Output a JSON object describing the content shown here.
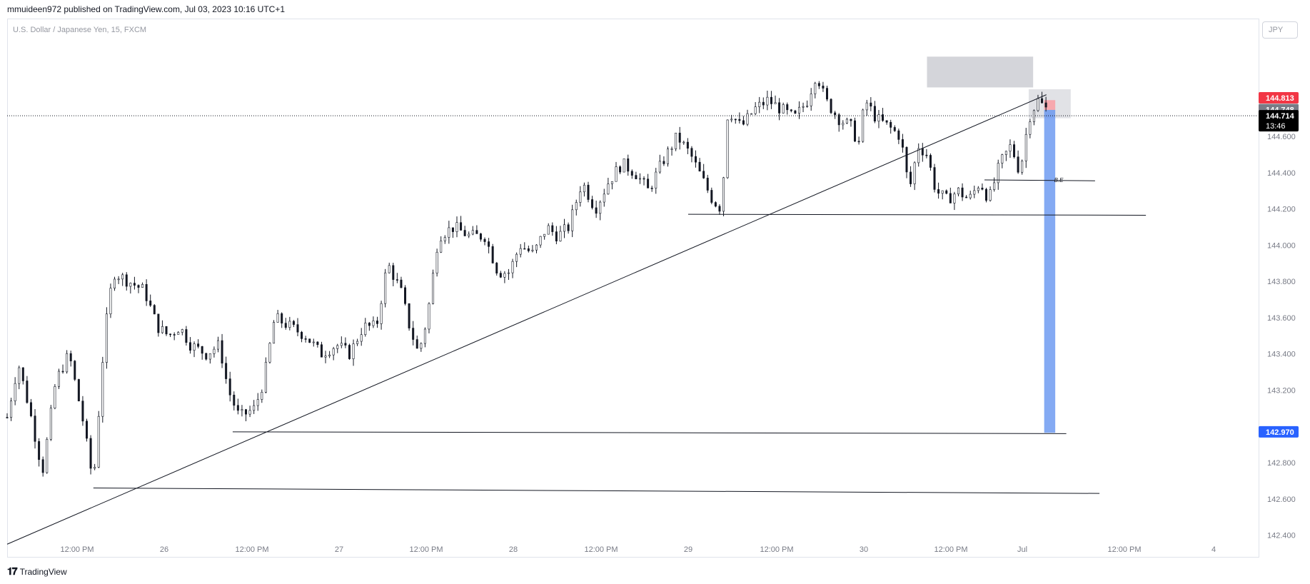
{
  "header": {
    "published": "mmuideen972 published on TradingView.com, Jul 03, 2023 10:16 UTC+1",
    "symbol": "U.S. Dollar / Japanese Yen, 15, FXCM",
    "currency_button": "JPY"
  },
  "footer": {
    "logo_text": "TradingView"
  },
  "colors": {
    "candle": "#131722",
    "stop_label": "#f23645",
    "target_label": "#2962ff",
    "target_zone": "#5b8def",
    "stop_zone": "#f7a8ae",
    "supply_zone": "#c9cbd1",
    "entry_label": "#787b86",
    "current_label": "#000000"
  },
  "chart_data": {
    "type": "candlestick",
    "ylim": [
      142.28,
      145.25
    ],
    "y_ticks": [
      "144.600",
      "144.400",
      "144.200",
      "144.000",
      "143.800",
      "143.600",
      "143.400",
      "143.200",
      "142.800",
      "142.600",
      "142.400"
    ],
    "x_ticks": [
      "12:00 PM",
      "26",
      "12:00 PM",
      "27",
      "12:00 PM",
      "28",
      "12:00 PM",
      "29",
      "12:00 PM",
      "30",
      "12:00 PM",
      "Jul",
      "12:00 PM",
      "4"
    ],
    "price_labels": {
      "stop": "144.813",
      "entry": "144.748",
      "current": "144.714",
      "countdown": "13:46",
      "target": "142.970"
    },
    "annotation": "B.E",
    "horizontal_levels": [
      142.66,
      142.97,
      144.17,
      144.36
    ],
    "trendline_label": "",
    "close_path": [
      [
        0,
        143.05
      ],
      [
        0.5,
        143.35
      ],
      [
        1,
        143.1
      ],
      [
        1.6,
        142.75
      ],
      [
        2.2,
        143.25
      ],
      [
        2.8,
        143.4
      ],
      [
        3.4,
        143.05
      ],
      [
        3.9,
        142.68
      ],
      [
        4.4,
        143.5
      ],
      [
        4.8,
        143.85
      ],
      [
        5.5,
        143.8
      ],
      [
        6.2,
        143.75
      ],
      [
        6.8,
        143.55
      ],
      [
        7.3,
        143.5
      ],
      [
        7.8,
        143.55
      ],
      [
        8.3,
        143.45
      ],
      [
        9.0,
        143.4
      ],
      [
        9.6,
        143.45
      ],
      [
        10.0,
        143.2
      ],
      [
        10.5,
        143.05
      ],
      [
        11.2,
        143.1
      ],
      [
        11.6,
        143.25
      ],
      [
        12.1,
        143.6
      ],
      [
        12.8,
        143.55
      ],
      [
        13.5,
        143.5
      ],
      [
        14.2,
        143.4
      ],
      [
        14.9,
        143.45
      ],
      [
        15.5,
        143.4
      ],
      [
        16.1,
        143.55
      ],
      [
        16.7,
        143.55
      ],
      [
        17.2,
        143.9
      ],
      [
        17.8,
        143.75
      ],
      [
        18.2,
        143.55
      ],
      [
        18.6,
        143.4
      ],
      [
        19.0,
        143.6
      ],
      [
        19.5,
        144.05
      ],
      [
        20.2,
        144.1
      ],
      [
        20.9,
        144.05
      ],
      [
        21.6,
        144.05
      ],
      [
        22.2,
        143.85
      ],
      [
        22.7,
        143.85
      ],
      [
        23.2,
        144.0
      ],
      [
        23.8,
        143.95
      ],
      [
        24.4,
        144.1
      ],
      [
        24.9,
        144.05
      ],
      [
        25.4,
        144.1
      ],
      [
        26.0,
        144.35
      ],
      [
        26.6,
        144.2
      ],
      [
        27.2,
        144.35
      ],
      [
        27.8,
        144.45
      ],
      [
        28.4,
        144.4
      ],
      [
        29.0,
        144.3
      ],
      [
        29.6,
        144.45
      ],
      [
        30.3,
        144.6
      ],
      [
        30.9,
        144.5
      ],
      [
        31.5,
        144.35
      ],
      [
        31.9,
        144.25
      ],
      [
        32.3,
        144.2
      ],
      [
        32.6,
        144.75
      ],
      [
        33.2,
        144.65
      ],
      [
        33.8,
        144.75
      ],
      [
        34.4,
        144.8
      ],
      [
        35.0,
        144.75
      ],
      [
        35.6,
        144.7
      ],
      [
        36.2,
        144.8
      ],
      [
        36.6,
        144.95
      ],
      [
        37.0,
        144.8
      ],
      [
        37.6,
        144.7
      ],
      [
        38.2,
        144.65
      ],
      [
        38.5,
        144.55
      ],
      [
        38.8,
        144.8
      ],
      [
        39.3,
        144.7
      ],
      [
        39.9,
        144.65
      ],
      [
        40.4,
        144.6
      ],
      [
        40.8,
        144.3
      ],
      [
        41.2,
        144.55
      ],
      [
        41.6,
        144.5
      ],
      [
        42.0,
        144.3
      ],
      [
        42.5,
        144.25
      ],
      [
        43.0,
        144.3
      ],
      [
        43.5,
        144.25
      ],
      [
        44.0,
        144.35
      ],
      [
        44.4,
        144.25
      ],
      [
        44.9,
        144.45
      ],
      [
        45.4,
        144.55
      ],
      [
        45.8,
        144.4
      ],
      [
        46.2,
        144.7
      ],
      [
        46.6,
        144.8
      ],
      [
        47.0,
        144.75
      ]
    ],
    "trendline": {
      "from": [
        0,
        142.35
      ],
      "to": [
        47.0,
        144.83
      ]
    }
  }
}
